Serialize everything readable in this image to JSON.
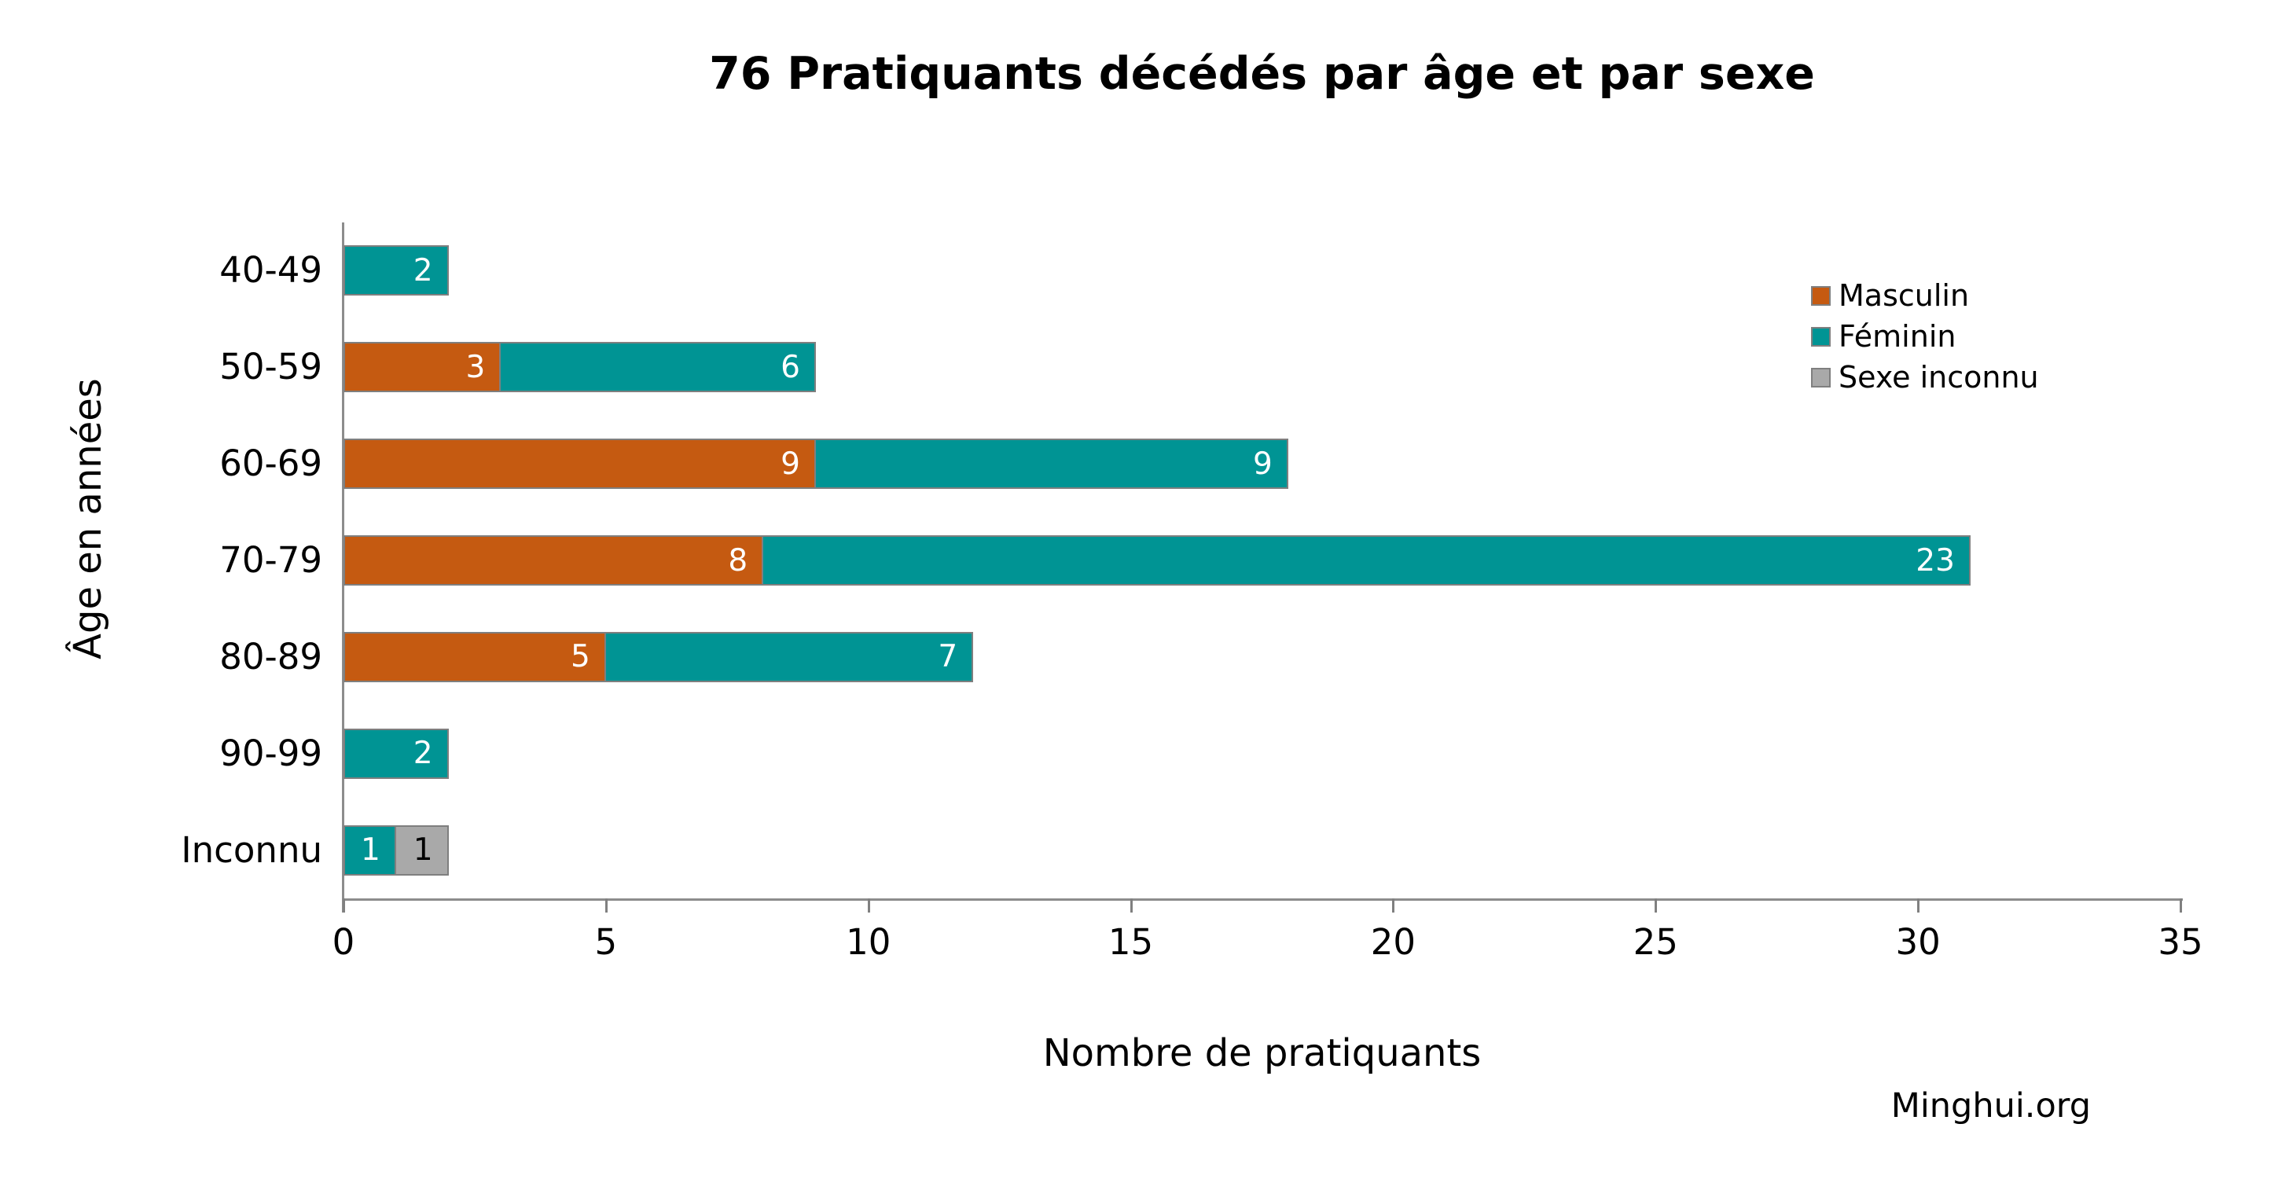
{
  "watermark": "Minghui.org",
  "chart_data": {
    "type": "bar",
    "orientation": "horizontal",
    "stacked": true,
    "title": "76 Pratiquants décédés par âge et par sexe",
    "xlabel": "Nombre de pratiquants",
    "ylabel": "Âge en années",
    "categories": [
      "40-49",
      "50-59",
      "60-69",
      "70-79",
      "80-89",
      "90-99",
      "Inconnu"
    ],
    "series": [
      {
        "name": "Masculin",
        "color": "#C55A11",
        "value_label_color": "#FFFFFF",
        "values": [
          0,
          3,
          9,
          8,
          5,
          0,
          0
        ]
      },
      {
        "name": "Féminin",
        "color": "#009494",
        "value_label_color": "#FFFFFF",
        "values": [
          2,
          6,
          9,
          23,
          7,
          2,
          1
        ]
      },
      {
        "name": "Sexe inconnu",
        "color": "#A9A9A9",
        "value_label_color": "#000000",
        "values": [
          0,
          0,
          0,
          0,
          0,
          0,
          1
        ]
      }
    ],
    "totals_by_category": [
      2,
      9,
      18,
      31,
      12,
      2,
      2
    ],
    "grand_total": 76,
    "xlim": [
      0,
      35
    ],
    "xticks": [
      0,
      5,
      10,
      15,
      20,
      25,
      30,
      35
    ],
    "grid": false,
    "legend_position": "right",
    "value_labels": "inside-end",
    "axis_color": "#8C8C8C",
    "bar_border_color": "#7F7F7F"
  }
}
